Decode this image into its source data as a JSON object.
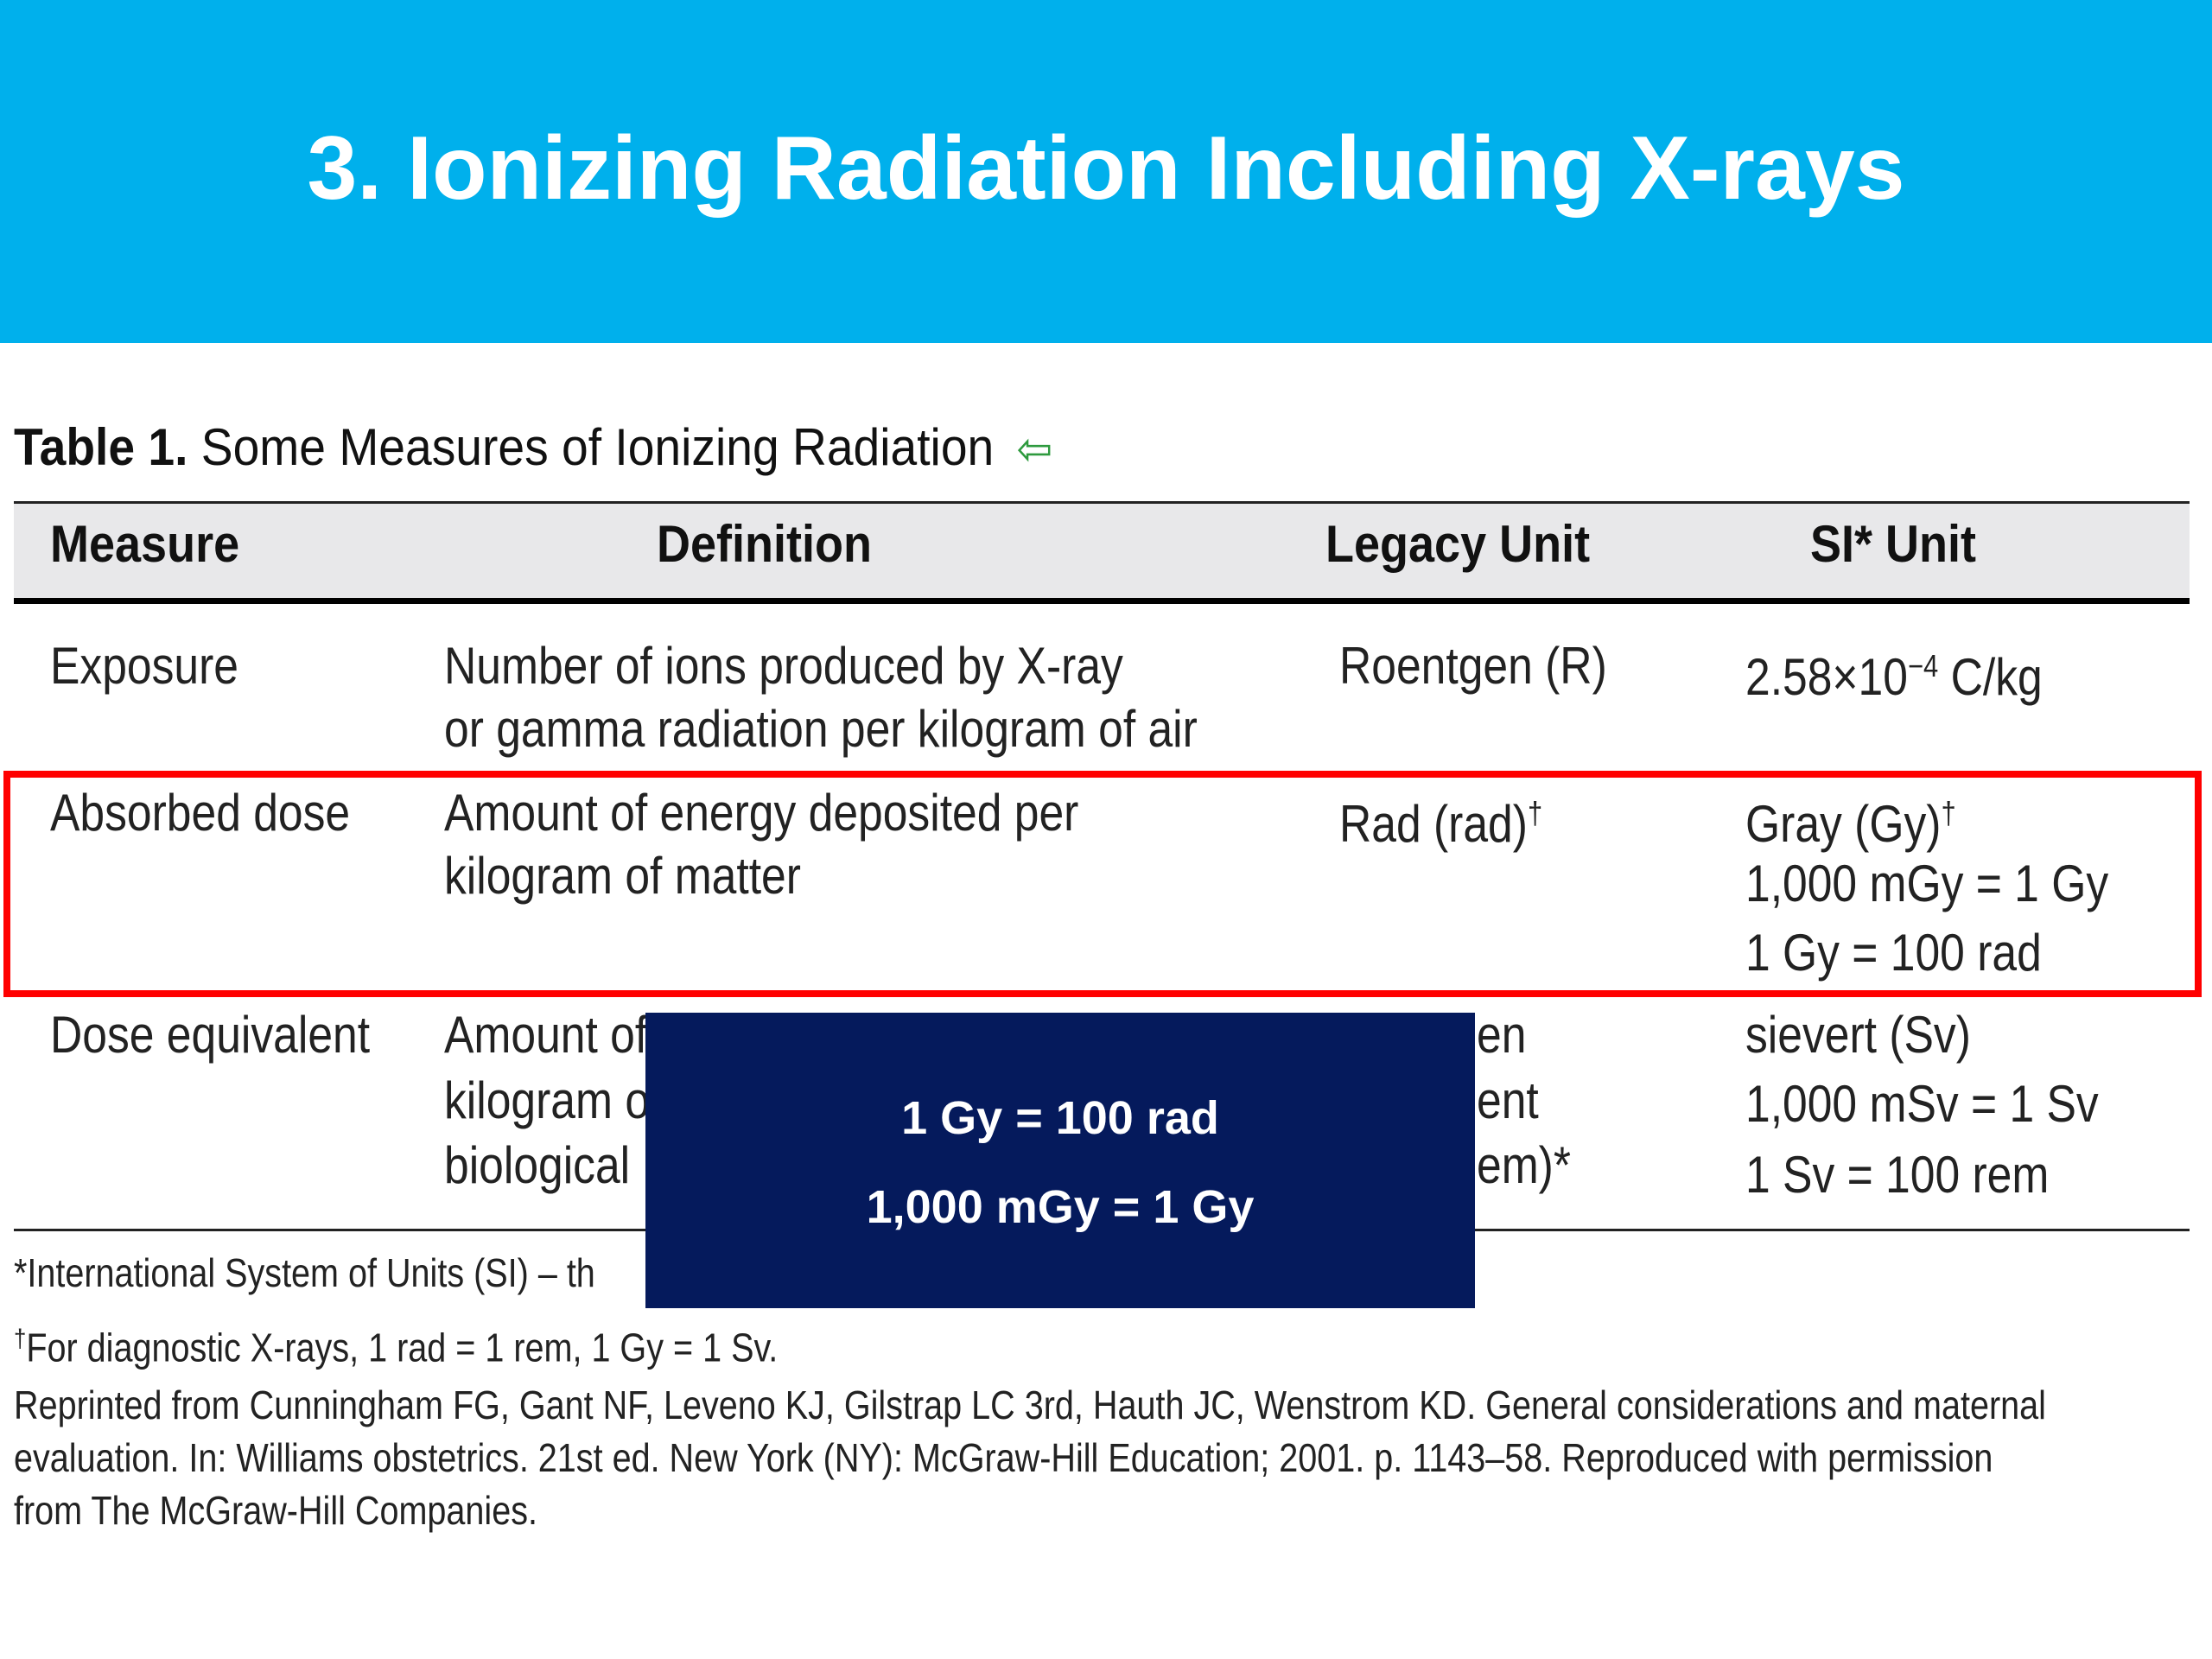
{
  "slide": {
    "title": "3. Ionizing Radiation Including X-rays"
  },
  "table": {
    "caption_label": "Table 1.",
    "caption_text": "Some Measures of Ionizing Radiation",
    "caption_icon": "back-arrow-icon",
    "caption_icon_glyph": "⇦",
    "headers": [
      "Measure",
      "Definition",
      "Legacy Unit",
      "SI* Unit"
    ],
    "rows": [
      {
        "measure": "Exposure",
        "definition": [
          "Number of ions produced by X-ray",
          "or gamma radiation per kilogram of air"
        ],
        "legacy_unit": [
          "Roentgen (R)"
        ],
        "si_unit_base": "2.58×10",
        "si_unit_exp": "−4",
        "si_unit_rest": " C/kg"
      },
      {
        "measure": "Absorbed dose",
        "definition": [
          "Amount of energy deposited per",
          "kilogram of matter"
        ],
        "legacy_unit": "Rad (rad)",
        "legacy_mark": "†",
        "si_unit_first": "Gray (Gy)",
        "si_unit_mark": "†",
        "si_unit_lines": [
          "1,000 mGy = 1 Gy",
          "1 Gy = 100 rad"
        ]
      },
      {
        "measure": "Dose equivalent",
        "definition_visible": [
          "Amount of",
          "kilogram o",
          "biological"
        ],
        "legacy_unit_visible": [
          "en",
          "ent",
          "em)*"
        ],
        "si_unit_lines": [
          "sievert (Sv)",
          "1,000 mSv = 1 Sv",
          "1 Sv = 100 rem"
        ]
      }
    ],
    "footnotes": {
      "si_visible": "*International System of Units (SI) – th",
      "dagger_mark": "†",
      "dagger_text": "For diagnostic X-rays, 1 rad = 1 rem, 1 Gy = 1 Sv.",
      "reprint": [
        "Reprinted from Cunningham FG, Gant NF, Leveno KJ, Gilstrap LC 3rd, Hauth JC, Wenstrom KD. General considerations and maternal",
        "evaluation. In: Williams obstetrics. 21st ed. New York (NY): McGraw-Hill Education; 2001. p. 1143–58. Reproduced with permission",
        "from The McGraw-Hill Companies."
      ]
    }
  },
  "callout": {
    "lines": [
      "1 Gy = 100 rad",
      "1,000 mGy = 1 Gy"
    ]
  },
  "colors": {
    "title_band": "#00b0ec",
    "highlight_border": "#ff0000",
    "callout_background": "#051a5c",
    "header_background": "#e8e8ea",
    "caption_icon": "#2e9a3e"
  }
}
